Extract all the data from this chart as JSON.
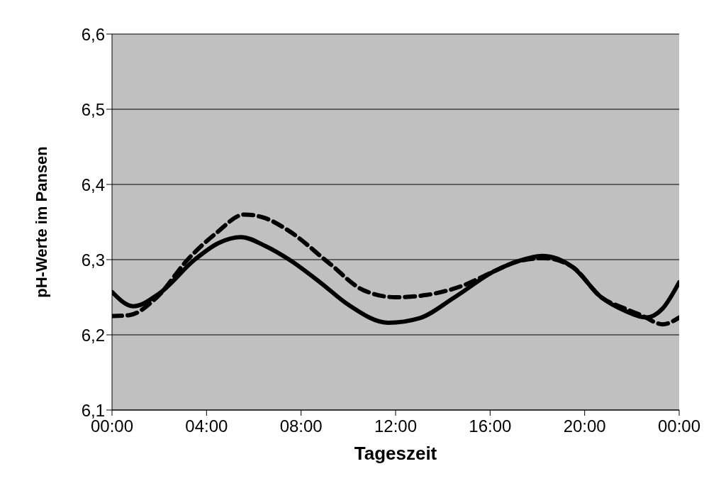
{
  "chart_data": {
    "type": "line",
    "xlabel": "Tageszeit",
    "ylabel": "pH-Werte im Pansen",
    "xlim": [
      0,
      24
    ],
    "xticks": [
      {
        "value": 0,
        "label": "00:00"
      },
      {
        "value": 4,
        "label": "04:00"
      },
      {
        "value": 8,
        "label": "08:00"
      },
      {
        "value": 12,
        "label": "12:00"
      },
      {
        "value": 16,
        "label": "16:00"
      },
      {
        "value": 20,
        "label": "20:00"
      },
      {
        "value": 24,
        "label": "00:00"
      }
    ],
    "ylim": [
      6.1,
      6.6
    ],
    "yticks": [
      {
        "value": 6.1,
        "label": "6,1"
      },
      {
        "value": 6.2,
        "label": "6,2"
      },
      {
        "value": 6.3,
        "label": "6,3"
      },
      {
        "value": 6.4,
        "label": "6,4"
      },
      {
        "value": 6.5,
        "label": "6,5"
      },
      {
        "value": 6.6,
        "label": "6,6"
      }
    ],
    "grid": "y",
    "marker": "none",
    "series": [
      {
        "color": "#000000",
        "line_style": "solid",
        "x": [
          0,
          0.9,
          2,
          3.5,
          4.5,
          5.45,
          6.5,
          7.5,
          8.8,
          10,
          11.7,
          13,
          14.5,
          16.2,
          17.2,
          18.2,
          19.5,
          20.7,
          21.7,
          22.6,
          23.3,
          24
        ],
        "values": [
          6.257,
          6.238,
          6.255,
          6.3,
          6.322,
          6.33,
          6.318,
          6.3,
          6.27,
          6.24,
          6.216,
          6.222,
          6.25,
          6.285,
          6.298,
          6.305,
          6.29,
          6.25,
          6.232,
          6.223,
          6.235,
          6.27
        ]
      },
      {
        "color": "#000000",
        "line_style": "dashed",
        "x": [
          0,
          0.7,
          1.9,
          3.2,
          4.4,
          5.6,
          6.5,
          7.4,
          9.2,
          10.6,
          12,
          13.3,
          14.8,
          16.2,
          17.2,
          18.3,
          19.5,
          20.7,
          21.7,
          22.4,
          23.3,
          24
        ],
        "values": [
          6.225,
          6.226,
          6.25,
          6.3,
          6.335,
          6.36,
          6.355,
          6.34,
          6.295,
          6.26,
          6.25,
          6.253,
          6.265,
          6.285,
          6.298,
          6.302,
          6.29,
          6.25,
          6.235,
          6.226,
          6.214,
          6.223
        ]
      }
    ]
  }
}
